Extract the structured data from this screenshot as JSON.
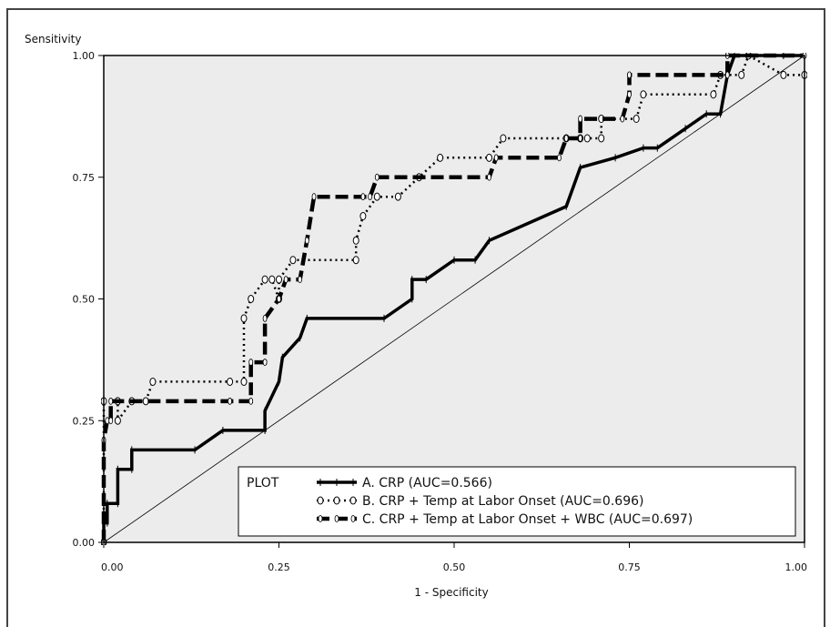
{
  "chart_data": {
    "type": "line",
    "title": "",
    "xlabel": "1 - Specificity",
    "ylabel": "Sensitivity",
    "xlim": [
      0,
      1
    ],
    "ylim": [
      0,
      1
    ],
    "x_ticks": [
      "0.00",
      "0.25",
      "0.50",
      "0.75",
      "1.00"
    ],
    "y_ticks": [
      "0.00",
      "0.25",
      "0.50",
      "0.75",
      "1.00"
    ],
    "grid": false,
    "legend": {
      "title": "PLOT",
      "placement": "bottom-right",
      "entries": [
        "A. CRP (AUC=0.566)",
        "B. CRP + Temp at Labor Onset (AUC=0.696)",
        "C. CRP + Temp at Labor Onset + WBC (AUC=0.697)"
      ]
    },
    "reference_line": {
      "from": [
        0,
        0
      ],
      "to": [
        1,
        1
      ]
    },
    "plot_background": "#ececec",
    "series": [
      {
        "name": "A. CRP (AUC=0.566)",
        "style": "solid-thick",
        "color": "#000000",
        "points": [
          [
            0,
            0
          ],
          [
            0,
            0.04
          ],
          [
            0.005,
            0.04
          ],
          [
            0.005,
            0.08
          ],
          [
            0.02,
            0.08
          ],
          [
            0.02,
            0.15
          ],
          [
            0.04,
            0.15
          ],
          [
            0.04,
            0.19
          ],
          [
            0.13,
            0.19
          ],
          [
            0.17,
            0.23
          ],
          [
            0.23,
            0.23
          ],
          [
            0.23,
            0.27
          ],
          [
            0.25,
            0.33
          ],
          [
            0.255,
            0.38
          ],
          [
            0.28,
            0.42
          ],
          [
            0.29,
            0.46
          ],
          [
            0.4,
            0.46
          ],
          [
            0.44,
            0.5
          ],
          [
            0.44,
            0.54
          ],
          [
            0.46,
            0.54
          ],
          [
            0.5,
            0.58
          ],
          [
            0.53,
            0.58
          ],
          [
            0.55,
            0.62
          ],
          [
            0.66,
            0.69
          ],
          [
            0.68,
            0.77
          ],
          [
            0.73,
            0.79
          ],
          [
            0.77,
            0.81
          ],
          [
            0.79,
            0.81
          ],
          [
            0.83,
            0.85
          ],
          [
            0.86,
            0.88
          ],
          [
            0.88,
            0.88
          ],
          [
            0.89,
            0.96
          ],
          [
            0.9,
            1.0
          ],
          [
            0.97,
            1.0
          ],
          [
            1.0,
            1.0
          ]
        ]
      },
      {
        "name": "B. CRP + Temp at Labor Onset (AUC=0.696)",
        "style": "dotted-circles",
        "color": "#000000",
        "points": [
          [
            0,
            0
          ],
          [
            0,
            0.29
          ],
          [
            0.02,
            0.29
          ],
          [
            0.02,
            0.25
          ],
          [
            0.04,
            0.29
          ],
          [
            0.06,
            0.29
          ],
          [
            0.07,
            0.33
          ],
          [
            0.18,
            0.33
          ],
          [
            0.2,
            0.33
          ],
          [
            0.2,
            0.46
          ],
          [
            0.21,
            0.5
          ],
          [
            0.23,
            0.54
          ],
          [
            0.24,
            0.54
          ],
          [
            0.25,
            0.5
          ],
          [
            0.25,
            0.54
          ],
          [
            0.27,
            0.58
          ],
          [
            0.36,
            0.58
          ],
          [
            0.36,
            0.62
          ],
          [
            0.37,
            0.67
          ],
          [
            0.39,
            0.71
          ],
          [
            0.42,
            0.71
          ],
          [
            0.45,
            0.75
          ],
          [
            0.48,
            0.79
          ],
          [
            0.55,
            0.79
          ],
          [
            0.57,
            0.83
          ],
          [
            0.66,
            0.83
          ],
          [
            0.68,
            0.83
          ],
          [
            0.69,
            0.83
          ],
          [
            0.71,
            0.83
          ],
          [
            0.71,
            0.87
          ],
          [
            0.76,
            0.87
          ],
          [
            0.77,
            0.92
          ],
          [
            0.87,
            0.92
          ],
          [
            0.88,
            0.96
          ],
          [
            0.91,
            0.96
          ],
          [
            0.92,
            1.0
          ],
          [
            0.97,
            0.96
          ],
          [
            1.0,
            0.96
          ]
        ]
      },
      {
        "name": "C. CRP + Temp at Labor Onset + WBC (AUC=0.697)",
        "style": "dashed-thick",
        "color": "#000000",
        "points": [
          [
            0,
            0
          ],
          [
            0,
            0.21
          ],
          [
            0.005,
            0.25
          ],
          [
            0.01,
            0.25
          ],
          [
            0.01,
            0.29
          ],
          [
            0.18,
            0.29
          ],
          [
            0.18,
            0.29
          ],
          [
            0.21,
            0.29
          ],
          [
            0.21,
            0.37
          ],
          [
            0.23,
            0.37
          ],
          [
            0.23,
            0.46
          ],
          [
            0.25,
            0.5
          ],
          [
            0.26,
            0.54
          ],
          [
            0.28,
            0.54
          ],
          [
            0.29,
            0.62
          ],
          [
            0.3,
            0.71
          ],
          [
            0.37,
            0.71
          ],
          [
            0.38,
            0.71
          ],
          [
            0.39,
            0.75
          ],
          [
            0.55,
            0.75
          ],
          [
            0.56,
            0.79
          ],
          [
            0.65,
            0.79
          ],
          [
            0.66,
            0.83
          ],
          [
            0.68,
            0.83
          ],
          [
            0.68,
            0.87
          ],
          [
            0.74,
            0.87
          ],
          [
            0.75,
            0.92
          ],
          [
            0.75,
            0.96
          ],
          [
            0.89,
            0.96
          ],
          [
            0.89,
            1.0
          ],
          [
            1.0,
            1.0
          ]
        ]
      }
    ]
  }
}
